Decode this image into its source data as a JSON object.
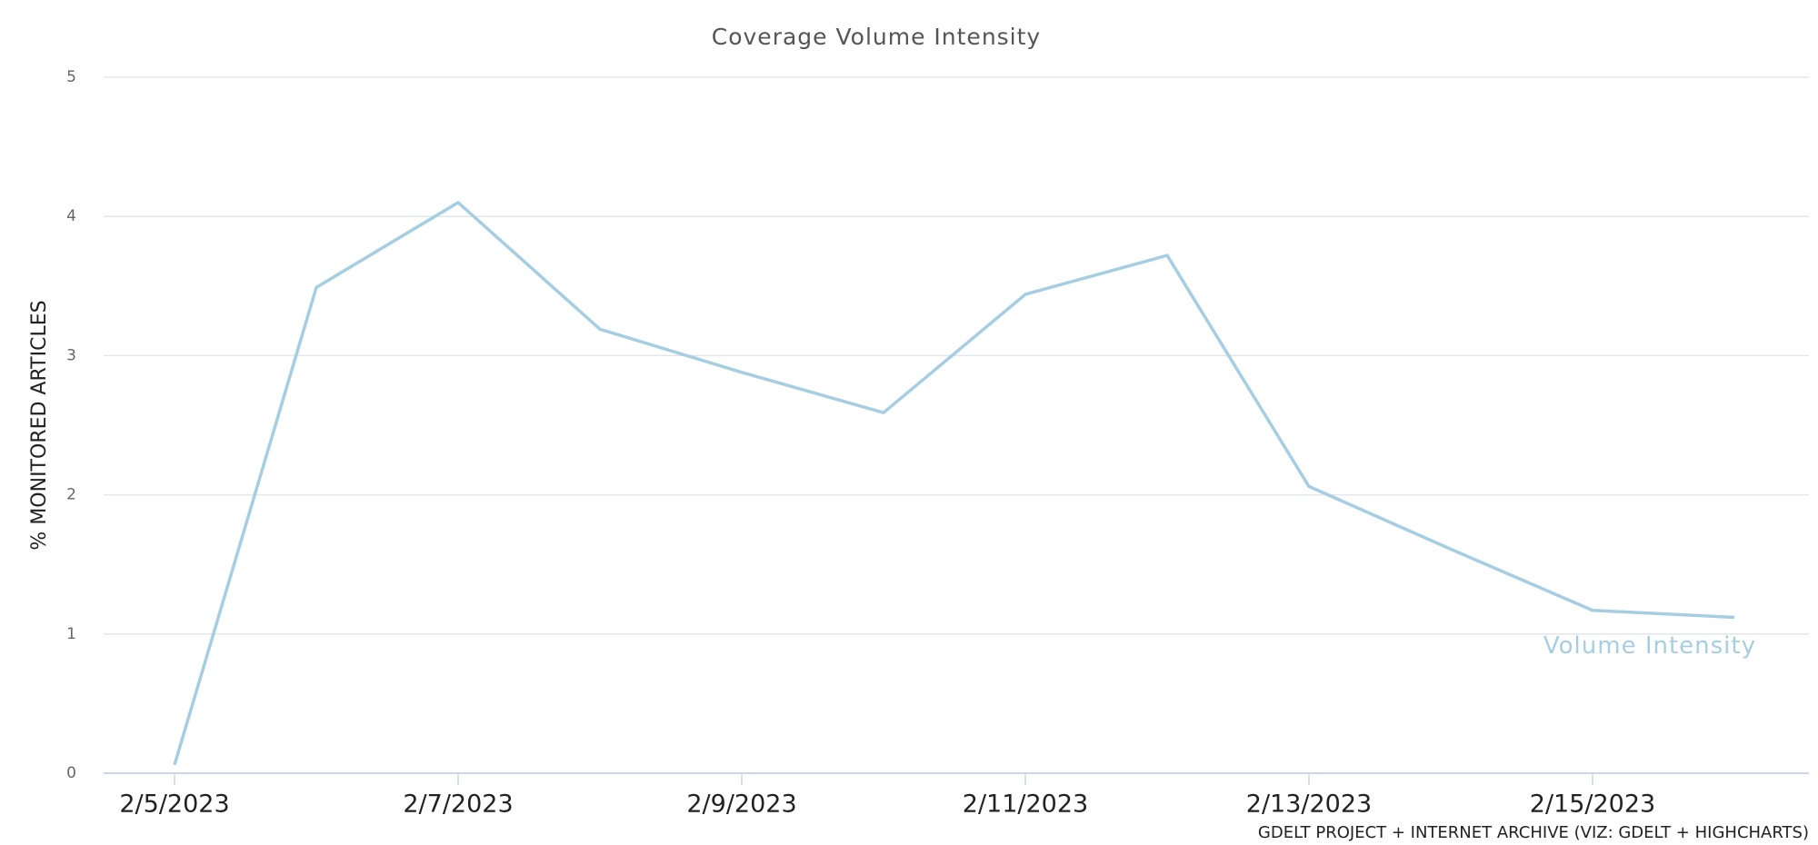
{
  "chart_data": {
    "type": "line",
    "title": "Coverage Volume Intensity",
    "y_label": "% MONITORED ARTICLES",
    "credit": "GDELT PROJECT + INTERNET ARCHIVE (VIZ: GDELT + HIGHCHARTS)",
    "categories": [
      "2/5/2023",
      null,
      "2/7/2023",
      null,
      "2/9/2023",
      null,
      "2/11/2023",
      null,
      "2/13/2023",
      null,
      "2/15/2023",
      null
    ],
    "series": [
      {
        "name": "Volume Intensity",
        "color": "#a6cee3",
        "values": [
          0.06,
          3.49,
          4.1,
          3.19,
          2.88,
          2.59,
          3.44,
          3.72,
          2.06,
          1.61,
          1.17,
          1.12
        ]
      }
    ],
    "ylim": [
      0,
      5
    ],
    "yticks": [
      0,
      1,
      2,
      3,
      4,
      5
    ],
    "grid": true
  }
}
